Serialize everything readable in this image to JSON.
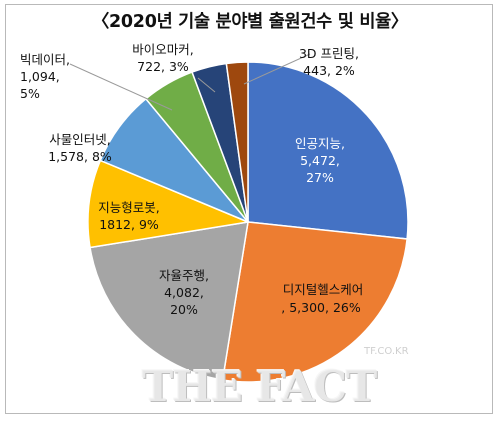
{
  "chart_data": {
    "type": "pie",
    "title": "〈2020년 기술 분야별 출원건수 및 비율〉",
    "slices": [
      {
        "label": "인공지능",
        "value": 5472,
        "display_value": "5,472",
        "percent": "27%",
        "color": "#4472c4",
        "text_color": "#ffffff"
      },
      {
        "label": "디지털헬스케어",
        "value": 5300,
        "display_value": "5,300",
        "percent": "26%",
        "color": "#ed7d31",
        "text_color": "#ffffff"
      },
      {
        "label": "자율주행",
        "value": 4082,
        "display_value": "4,082",
        "percent": "20%",
        "color": "#a5a5a5",
        "text_color": "#111111"
      },
      {
        "label": "지능형로봇",
        "value": 1812,
        "display_value": "1812",
        "percent": "9%",
        "color": "#ffc000",
        "text_color": "#111111"
      },
      {
        "label": "사물인터넷",
        "value": 1578,
        "display_value": "1,578",
        "percent": "8%",
        "color": "#5b9bd5",
        "text_color": "#111111"
      },
      {
        "label": "빅데이터",
        "value": 1094,
        "display_value": "1,094",
        "percent": "5%",
        "color": "#70ad47",
        "text_color": "#111111"
      },
      {
        "label": "바이오마커",
        "value": 722,
        "display_value": "722",
        "percent": "3%",
        "color": "#264478",
        "text_color": "#111111"
      },
      {
        "label": "3D 프린팅",
        "value": 443,
        "display_value": "443",
        "percent": "2%",
        "color": "#9e480e",
        "text_color": "#111111"
      }
    ],
    "label_texts": [
      "인공지능,\n5,472,\n27%",
      ", 5,300, 26%",
      "자율주행,\n4,082,\n20%",
      "지능형로봇,\n1812, 9%",
      "사물인터넷,\n1,578, 8%",
      "빅데이터,\n1,094,\n5%",
      "바이오마커,\n722, 3%",
      "3D 프린팅,\n443, 2%"
    ],
    "label_heading_2": "디지털헬스케어"
  },
  "watermark": {
    "small": "TF.CO.KR",
    "big": "THE FACT"
  }
}
